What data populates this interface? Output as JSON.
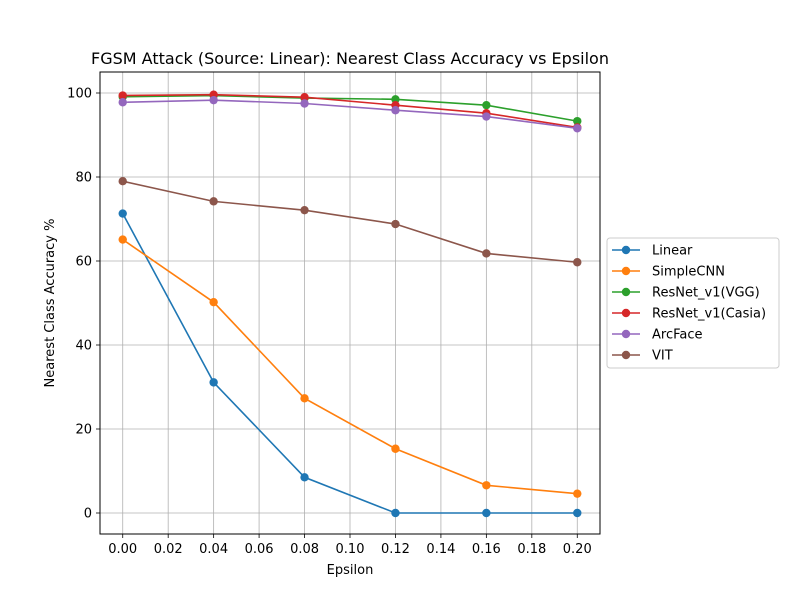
{
  "chart_data": {
    "type": "line",
    "title": "FGSM Attack (Source: Linear): Nearest Class Accuracy vs Epsilon",
    "xlabel": "Epsilon",
    "ylabel": "Nearest Class Accuracy %",
    "x": [
      0.0,
      0.04,
      0.08,
      0.12,
      0.16,
      0.2
    ],
    "xlim": [
      -0.01,
      0.21
    ],
    "ylim": [
      -5,
      105
    ],
    "xticks": [
      "0.00",
      "0.02",
      "0.04",
      "0.06",
      "0.08",
      "0.10",
      "0.12",
      "0.14",
      "0.16",
      "0.18",
      "0.20"
    ],
    "yticks": [
      "0",
      "20",
      "40",
      "60",
      "80",
      "100"
    ],
    "grid": true,
    "legend_position": "right-outside",
    "series": [
      {
        "name": "Linear",
        "color": "#1f77b4",
        "values": [
          71.3,
          31.1,
          8.5,
          0.0,
          0.0,
          0.0
        ]
      },
      {
        "name": "SimpleCNN",
        "color": "#ff7f0e",
        "values": [
          65.1,
          50.2,
          27.3,
          15.3,
          6.6,
          4.6
        ]
      },
      {
        "name": "ResNet_v1(VGG)",
        "color": "#2ca02c",
        "values": [
          99.1,
          99.4,
          98.8,
          98.5,
          97.1,
          93.3
        ]
      },
      {
        "name": "ResNet_v1(Casia)",
        "color": "#d62728",
        "values": [
          99.4,
          99.6,
          99.0,
          97.1,
          95.2,
          91.8
        ]
      },
      {
        "name": "ArcFace",
        "color": "#9467bd",
        "values": [
          97.8,
          98.3,
          97.5,
          95.9,
          94.4,
          91.6
        ]
      },
      {
        "name": "VIT",
        "color": "#8c564b",
        "values": [
          79.0,
          74.2,
          72.1,
          68.8,
          61.8,
          59.7
        ]
      }
    ]
  }
}
